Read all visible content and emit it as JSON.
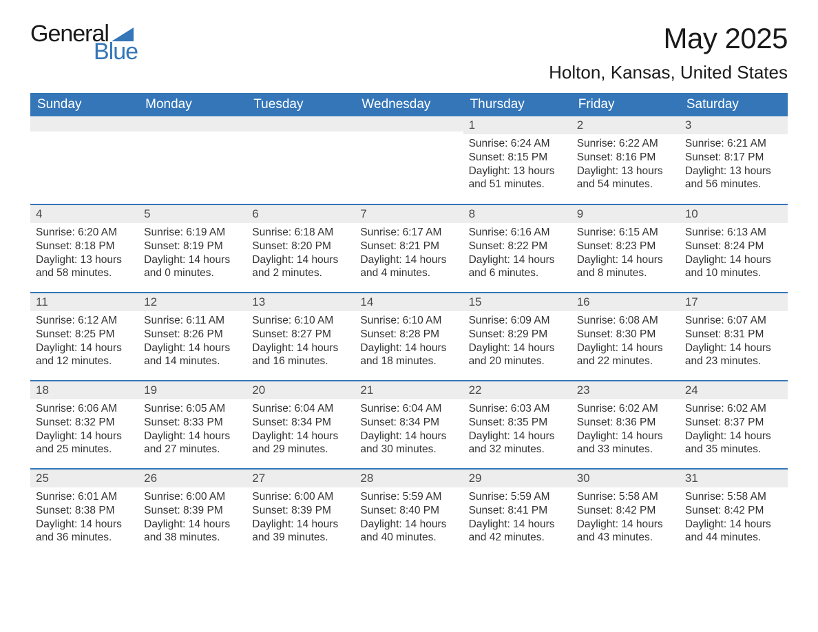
{
  "logo": {
    "word1": "General",
    "word2": "Blue",
    "shape_color": "#3476b8"
  },
  "title": "May 2025",
  "location": "Holton, Kansas, United States",
  "colors": {
    "header_bg": "#3476b8",
    "header_text": "#ffffff",
    "day_header_bg": "#ededed",
    "day_header_text": "#4a4a4a",
    "body_text": "#333333",
    "row_border": "#3476b8",
    "page_bg": "#ffffff"
  },
  "typography": {
    "title_fontsize": 42,
    "location_fontsize": 26,
    "weekday_fontsize": 19,
    "daynum_fontsize": 17,
    "body_fontsize": 15.5,
    "font_family": "Arial"
  },
  "layout": {
    "columns": 7,
    "rows": 5,
    "blank_leading_cells": 4
  },
  "weekdays": [
    "Sunday",
    "Monday",
    "Tuesday",
    "Wednesday",
    "Thursday",
    "Friday",
    "Saturday"
  ],
  "days": [
    {
      "n": 1,
      "sunrise": "6:24 AM",
      "sunset": "8:15 PM",
      "daylight": "13 hours and 51 minutes."
    },
    {
      "n": 2,
      "sunrise": "6:22 AM",
      "sunset": "8:16 PM",
      "daylight": "13 hours and 54 minutes."
    },
    {
      "n": 3,
      "sunrise": "6:21 AM",
      "sunset": "8:17 PM",
      "daylight": "13 hours and 56 minutes."
    },
    {
      "n": 4,
      "sunrise": "6:20 AM",
      "sunset": "8:18 PM",
      "daylight": "13 hours and 58 minutes."
    },
    {
      "n": 5,
      "sunrise": "6:19 AM",
      "sunset": "8:19 PM",
      "daylight": "14 hours and 0 minutes."
    },
    {
      "n": 6,
      "sunrise": "6:18 AM",
      "sunset": "8:20 PM",
      "daylight": "14 hours and 2 minutes."
    },
    {
      "n": 7,
      "sunrise": "6:17 AM",
      "sunset": "8:21 PM",
      "daylight": "14 hours and 4 minutes."
    },
    {
      "n": 8,
      "sunrise": "6:16 AM",
      "sunset": "8:22 PM",
      "daylight": "14 hours and 6 minutes."
    },
    {
      "n": 9,
      "sunrise": "6:15 AM",
      "sunset": "8:23 PM",
      "daylight": "14 hours and 8 minutes."
    },
    {
      "n": 10,
      "sunrise": "6:13 AM",
      "sunset": "8:24 PM",
      "daylight": "14 hours and 10 minutes."
    },
    {
      "n": 11,
      "sunrise": "6:12 AM",
      "sunset": "8:25 PM",
      "daylight": "14 hours and 12 minutes."
    },
    {
      "n": 12,
      "sunrise": "6:11 AM",
      "sunset": "8:26 PM",
      "daylight": "14 hours and 14 minutes."
    },
    {
      "n": 13,
      "sunrise": "6:10 AM",
      "sunset": "8:27 PM",
      "daylight": "14 hours and 16 minutes."
    },
    {
      "n": 14,
      "sunrise": "6:10 AM",
      "sunset": "8:28 PM",
      "daylight": "14 hours and 18 minutes."
    },
    {
      "n": 15,
      "sunrise": "6:09 AM",
      "sunset": "8:29 PM",
      "daylight": "14 hours and 20 minutes."
    },
    {
      "n": 16,
      "sunrise": "6:08 AM",
      "sunset": "8:30 PM",
      "daylight": "14 hours and 22 minutes."
    },
    {
      "n": 17,
      "sunrise": "6:07 AM",
      "sunset": "8:31 PM",
      "daylight": "14 hours and 23 minutes."
    },
    {
      "n": 18,
      "sunrise": "6:06 AM",
      "sunset": "8:32 PM",
      "daylight": "14 hours and 25 minutes."
    },
    {
      "n": 19,
      "sunrise": "6:05 AM",
      "sunset": "8:33 PM",
      "daylight": "14 hours and 27 minutes."
    },
    {
      "n": 20,
      "sunrise": "6:04 AM",
      "sunset": "8:34 PM",
      "daylight": "14 hours and 29 minutes."
    },
    {
      "n": 21,
      "sunrise": "6:04 AM",
      "sunset": "8:34 PM",
      "daylight": "14 hours and 30 minutes."
    },
    {
      "n": 22,
      "sunrise": "6:03 AM",
      "sunset": "8:35 PM",
      "daylight": "14 hours and 32 minutes."
    },
    {
      "n": 23,
      "sunrise": "6:02 AM",
      "sunset": "8:36 PM",
      "daylight": "14 hours and 33 minutes."
    },
    {
      "n": 24,
      "sunrise": "6:02 AM",
      "sunset": "8:37 PM",
      "daylight": "14 hours and 35 minutes."
    },
    {
      "n": 25,
      "sunrise": "6:01 AM",
      "sunset": "8:38 PM",
      "daylight": "14 hours and 36 minutes."
    },
    {
      "n": 26,
      "sunrise": "6:00 AM",
      "sunset": "8:39 PM",
      "daylight": "14 hours and 38 minutes."
    },
    {
      "n": 27,
      "sunrise": "6:00 AM",
      "sunset": "8:39 PM",
      "daylight": "14 hours and 39 minutes."
    },
    {
      "n": 28,
      "sunrise": "5:59 AM",
      "sunset": "8:40 PM",
      "daylight": "14 hours and 40 minutes."
    },
    {
      "n": 29,
      "sunrise": "5:59 AM",
      "sunset": "8:41 PM",
      "daylight": "14 hours and 42 minutes."
    },
    {
      "n": 30,
      "sunrise": "5:58 AM",
      "sunset": "8:42 PM",
      "daylight": "14 hours and 43 minutes."
    },
    {
      "n": 31,
      "sunrise": "5:58 AM",
      "sunset": "8:42 PM",
      "daylight": "14 hours and 44 minutes."
    }
  ],
  "labels": {
    "sunrise": "Sunrise:",
    "sunset": "Sunset:",
    "daylight": "Daylight:"
  }
}
